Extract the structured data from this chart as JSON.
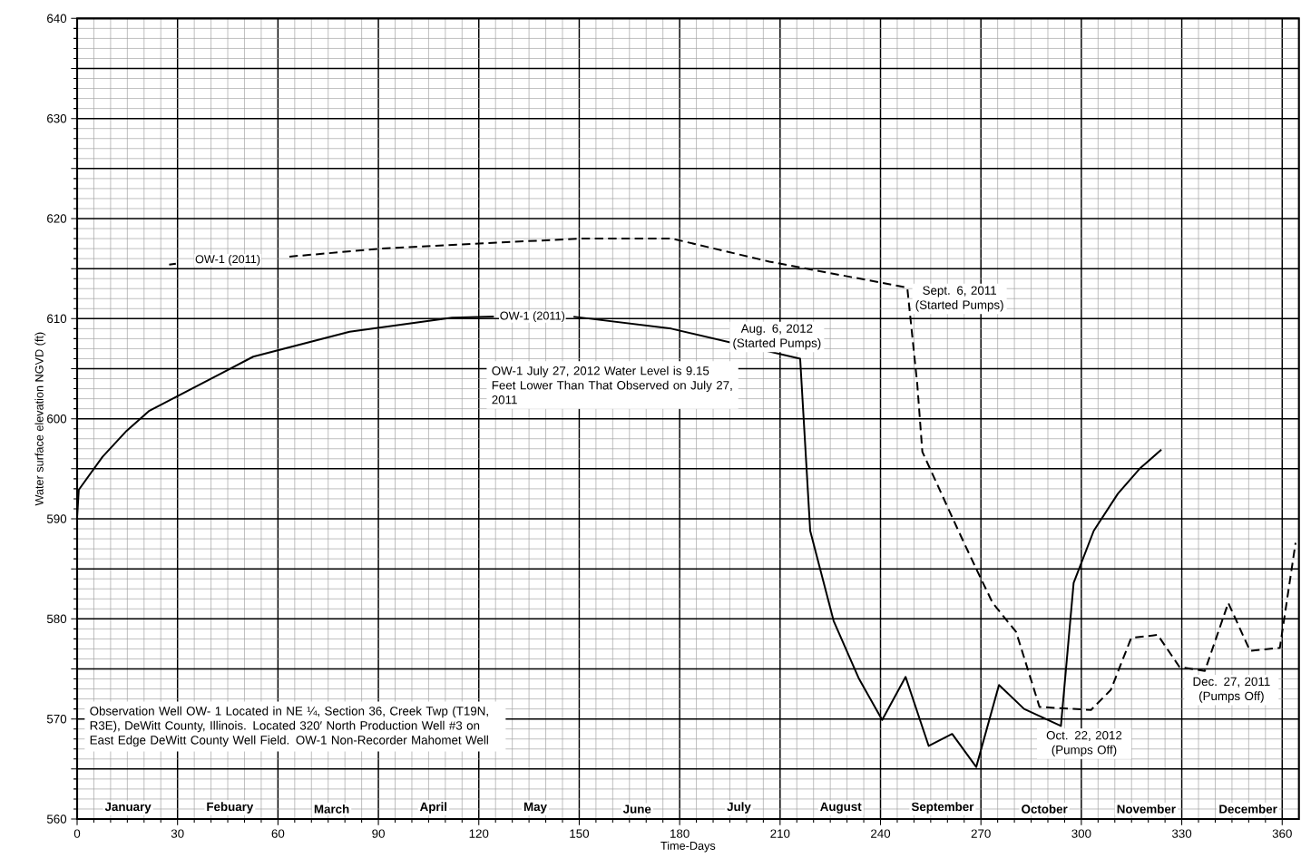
{
  "chart_data": {
    "type": "line",
    "xlabel": "Time-Days",
    "ylabel": "Water surface elevation NGVD (ft)",
    "xlim": [
      0,
      365
    ],
    "ylim": [
      560,
      640
    ],
    "xticks": [
      0,
      30,
      60,
      90,
      120,
      150,
      180,
      210,
      240,
      270,
      300,
      330,
      360
    ],
    "yticks": [
      560,
      {
        "value": 565,
        "label": null
      },
      570,
      {
        "value": 575,
        "label": null
      },
      580,
      {
        "value": 585,
        "label": null
      },
      590,
      {
        "value": 595,
        "label": null
      },
      600,
      {
        "value": 605,
        "label": null
      },
      610,
      {
        "value": 615,
        "label": null
      },
      620,
      {
        "value": 625,
        "label": null
      },
      630,
      {
        "value": 635,
        "label": null
      },
      640
    ],
    "grid": true,
    "series": [
      {
        "name": "OW-1 (2011)",
        "color": "#000000",
        "line_style": "dashed",
        "x": [
          27.5,
          29.5,
          45,
          63.4,
          91,
          120,
          150,
          177.7,
          206.8,
          248,
          251,
          252.5,
          263,
          268.6,
          273.5,
          280.5,
          287.5,
          302.9,
          308.8,
          314.9,
          322.8,
          329.3,
          336.9,
          343.9,
          350.4,
          359.3,
          364
        ],
        "values": [
          615.4,
          615.5,
          null,
          616.2,
          617,
          617.5,
          618,
          618,
          615.7,
          613.1,
          603.4,
          596.7,
          589,
          585,
          581.6,
          578.7,
          571.2,
          570.9,
          572.9,
          578.1,
          578.4,
          575.2,
          574.8,
          581.6,
          576.8,
          577.1,
          587.6
        ]
      },
      {
        "name": "OW-1 (2011)",
        "color": "#000000",
        "line_style": "solid",
        "x": [
          0,
          0.5,
          7.6,
          14.8,
          21.6,
          52.6,
          81.4,
          112,
          124.5,
          136,
          148.3,
          177.5,
          216,
          219,
          226,
          233.6,
          240.5,
          247.5,
          254.4,
          261.4,
          268.6,
          275.4,
          282.9,
          293.9,
          297.7,
          303.7,
          310.9,
          317.4,
          323.9
        ],
        "values": [
          590.2,
          592.9,
          596.2,
          598.8,
          600.8,
          606.2,
          608.7,
          610.1,
          610.2,
          null,
          610.2,
          609,
          606,
          588.8,
          579.8,
          574,
          569.9,
          574.2,
          567.3,
          568.5,
          565.2,
          573.4,
          571,
          569.3,
          583.6,
          588.8,
          592.5,
          595,
          596.9
        ]
      }
    ],
    "annotations": [
      "OW-1 July 27, 2012 Water Level is 9.15 Feet Lower Than That Observed on July 27, 2011",
      "Observation Well OW- 1 Located in NE ¼, Section 36, Creek Twp (T19N, R3E), DeWitt County, Illinois. Located 320′ North Production Well #3 on East Edge DeWitt County Well Field. OW-1 Non-Recorder Mahomet Well",
      {
        "text": "Sept. 6, 2011 (Started Pumps)",
        "x": 248,
        "y": 613.1
      },
      {
        "text": "Aug. 6, 2012 (Started Pumps)",
        "x": 216,
        "y": 606
      },
      {
        "text": "Oct. 22, 2012 (Pumps Off)",
        "x": 293.9,
        "y": 569.3
      },
      {
        "text": "Dec. 27, 2011 (Pumps Off)",
        "x": 336.9,
        "y": 574.8
      },
      "January",
      "Febuary",
      "March",
      "April",
      "May",
      "June",
      "July",
      "August",
      "September",
      "October",
      "November",
      "December"
    ]
  }
}
